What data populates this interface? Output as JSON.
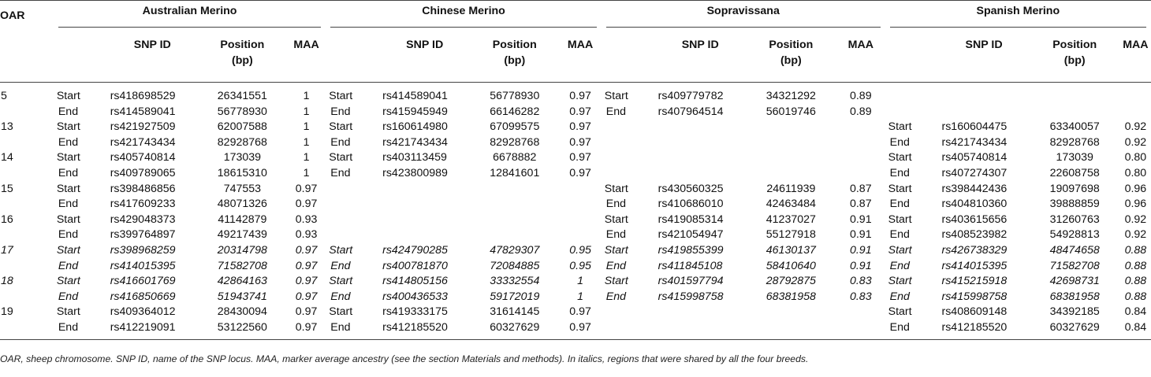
{
  "header": {
    "oar": "OAR",
    "breeds": [
      "Australian Merino",
      "Chinese Merino",
      "Sopravissana",
      "Spanish Merino"
    ],
    "col_snp": "SNP ID",
    "col_pos_line1": "Position",
    "col_pos_line2": "(bp)",
    "col_maa": "MAA"
  },
  "rows": [
    {
      "oar": "5",
      "italic": false,
      "cells": [
        [
          "Start",
          "rs418698529",
          "26341551",
          "1"
        ],
        [
          "Start",
          "rs414589041",
          "56778930",
          "0.97"
        ],
        [
          "Start",
          "rs409779782",
          "34321292",
          "0.89"
        ],
        [
          "",
          "",
          "",
          ""
        ]
      ]
    },
    {
      "oar": "",
      "italic": false,
      "cells": [
        [
          "End",
          "rs414589041",
          "56778930",
          "1"
        ],
        [
          "End",
          "rs415945949",
          "66146282",
          "0.97"
        ],
        [
          "End",
          "rs407964514",
          "56019746",
          "0.89"
        ],
        [
          "",
          "",
          "",
          ""
        ]
      ]
    },
    {
      "oar": "13",
      "italic": false,
      "cells": [
        [
          "Start",
          "rs421927509",
          "62007588",
          "1"
        ],
        [
          "Start",
          "rs160614980",
          "67099575",
          "0.97"
        ],
        [
          "",
          "",
          "",
          ""
        ],
        [
          "Start",
          "rs160604475",
          "63340057",
          "0.92"
        ]
      ]
    },
    {
      "oar": "",
      "italic": false,
      "cells": [
        [
          "End",
          "rs421743434",
          "82928768",
          "1"
        ],
        [
          "End",
          "rs421743434",
          "82928768",
          "0.97"
        ],
        [
          "",
          "",
          "",
          ""
        ],
        [
          "End",
          "rs421743434",
          "82928768",
          "0.92"
        ]
      ]
    },
    {
      "oar": "14",
      "italic": false,
      "cells": [
        [
          "Start",
          "rs405740814",
          "173039",
          "1"
        ],
        [
          "Start",
          "rs403113459",
          "6678882",
          "0.97"
        ],
        [
          "",
          "",
          "",
          ""
        ],
        [
          "Start",
          "rs405740814",
          "173039",
          "0.80"
        ]
      ]
    },
    {
      "oar": "",
      "italic": false,
      "cells": [
        [
          "End",
          "rs409789065",
          "18615310",
          "1"
        ],
        [
          "End",
          "rs423800989",
          "12841601",
          "0.97"
        ],
        [
          "",
          "",
          "",
          ""
        ],
        [
          "End",
          "rs407274307",
          "22608758",
          "0.80"
        ]
      ]
    },
    {
      "oar": "15",
      "italic": false,
      "cells": [
        [
          "Start",
          "rs398486856",
          "747553",
          "0.97"
        ],
        [
          "",
          "",
          "",
          ""
        ],
        [
          "Start",
          "rs430560325",
          "24611939",
          "0.87"
        ],
        [
          "Start",
          "rs398442436",
          "19097698",
          "0.96"
        ]
      ]
    },
    {
      "oar": "",
      "italic": false,
      "cells": [
        [
          "End",
          "rs417609233",
          "48071326",
          "0.97"
        ],
        [
          "",
          "",
          "",
          ""
        ],
        [
          "End",
          "rs410686010",
          "42463484",
          "0.87"
        ],
        [
          "End",
          "rs404810360",
          "39888859",
          "0.96"
        ]
      ]
    },
    {
      "oar": "16",
      "italic": false,
      "cells": [
        [
          "Start",
          "rs429048373",
          "41142879",
          "0.93"
        ],
        [
          "",
          "",
          "",
          ""
        ],
        [
          "Start",
          "rs419085314",
          "41237027",
          "0.91"
        ],
        [
          "Start",
          "rs403615656",
          "31260763",
          "0.92"
        ]
      ]
    },
    {
      "oar": "",
      "italic": false,
      "cells": [
        [
          "End",
          "rs399764897",
          "49217439",
          "0.93"
        ],
        [
          "",
          "",
          "",
          ""
        ],
        [
          "End",
          "rs421054947",
          "55127918",
          "0.91"
        ],
        [
          "End",
          "rs408523982",
          "54928813",
          "0.92"
        ]
      ]
    },
    {
      "oar": "17",
      "italic": true,
      "cells": [
        [
          "Start",
          "rs398968259",
          "20314798",
          "0.97"
        ],
        [
          "Start",
          "rs424790285",
          "47829307",
          "0.95"
        ],
        [
          "Start",
          "rs419855399",
          "46130137",
          "0.91"
        ],
        [
          "Start",
          "rs426738329",
          "48474658",
          "0.88"
        ]
      ]
    },
    {
      "oar": "",
      "italic": true,
      "cells": [
        [
          "End",
          "rs414015395",
          "71582708",
          "0.97"
        ],
        [
          "End",
          "rs400781870",
          "72084885",
          "0.95"
        ],
        [
          "End",
          "rs411845108",
          "58410640",
          "0.91"
        ],
        [
          "End",
          "rs414015395",
          "71582708",
          "0.88"
        ]
      ]
    },
    {
      "oar": "18",
      "italic": true,
      "cells": [
        [
          "Start",
          "rs416601769",
          "42864163",
          "0.97"
        ],
        [
          "Start",
          "rs414805156",
          "33332554",
          "1"
        ],
        [
          "Start",
          "rs401597794",
          "28792875",
          "0.83"
        ],
        [
          "Start",
          "rs415215918",
          "42698731",
          "0.88"
        ]
      ]
    },
    {
      "oar": "",
      "italic": true,
      "cells": [
        [
          "End",
          "rs416850669",
          "51943741",
          "0.97"
        ],
        [
          "End",
          "rs400436533",
          "59172019",
          "1"
        ],
        [
          "End",
          "rs415998758",
          "68381958",
          "0.83"
        ],
        [
          "End",
          "rs415998758",
          "68381958",
          "0.88"
        ]
      ]
    },
    {
      "oar": "19",
      "italic": false,
      "cells": [
        [
          "Start",
          "rs409364012",
          "28430094",
          "0.97"
        ],
        [
          "Start",
          "rs419333175",
          "31614145",
          "0.97"
        ],
        [
          "",
          "",
          "",
          ""
        ],
        [
          "Start",
          "rs408609148",
          "34392185",
          "0.84"
        ]
      ]
    },
    {
      "oar": "",
      "italic": false,
      "cells": [
        [
          "End",
          "rs412219091",
          "53122560",
          "0.97"
        ],
        [
          "End",
          "rs412185520",
          "60327629",
          "0.97"
        ],
        [
          "",
          "",
          "",
          ""
        ],
        [
          "End",
          "rs412185520",
          "60327629",
          "0.84"
        ]
      ]
    }
  ],
  "footnote": "OAR, sheep chromosome. SNP ID, name of the SNP locus. MAA, marker average ancestry (see the section Materials and methods). In italics, regions that were shared by all the four breeds."
}
